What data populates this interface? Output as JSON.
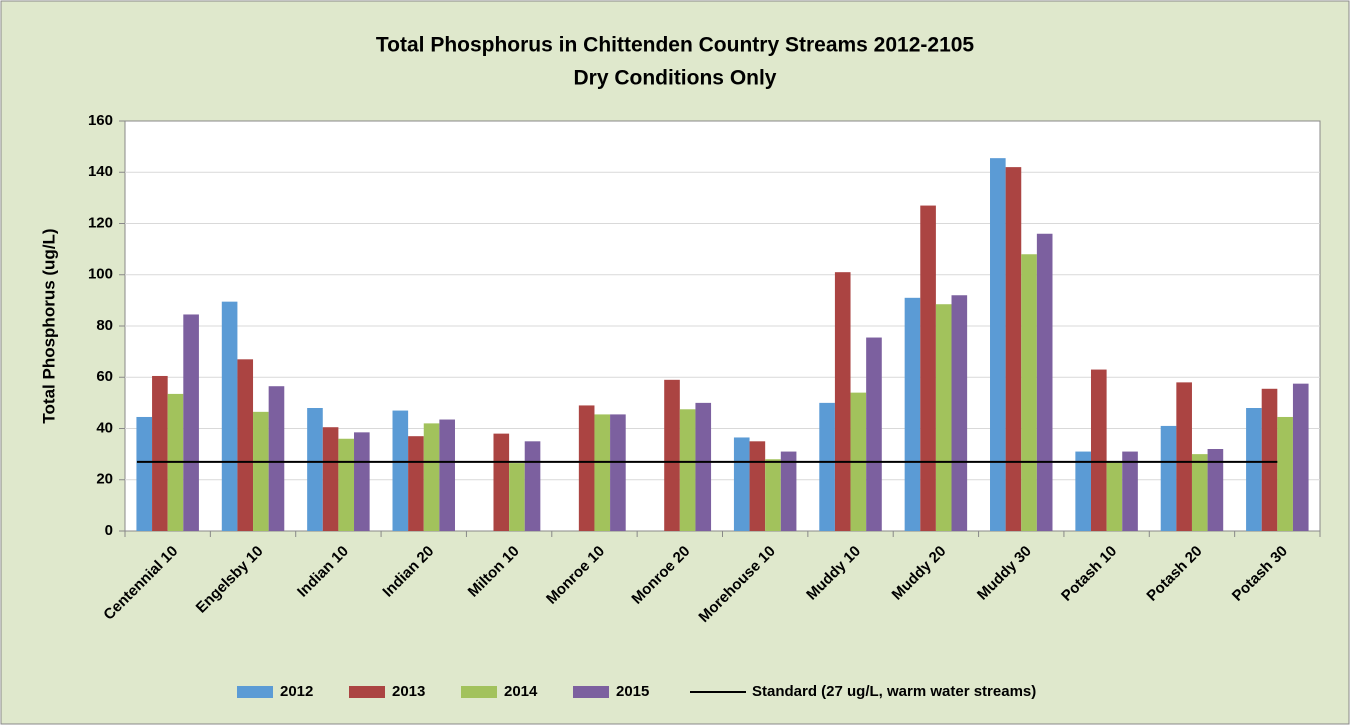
{
  "chart_data": {
    "type": "bar",
    "title": "Total Phosphorus in Chittenden Country Streams 2012-2105",
    "subtitle": "Dry Conditions Only",
    "y_label": "Total Phosphorus (ug/L)",
    "categories": [
      "Centennial 10",
      "Engelsby 10",
      "Indian 10",
      "Indian 20",
      "Milton 10",
      "Monroe 10",
      "Monroe 20",
      "Morehouse 10",
      "Muddy 10",
      "Muddy 20",
      "Muddy 30",
      "Potash 10",
      "Potash 20",
      "Potash 30"
    ],
    "series": [
      {
        "name": "2012",
        "color": "#5b9bd5",
        "values": [
          44.5,
          89.5,
          48,
          47,
          null,
          null,
          null,
          36.5,
          50,
          91,
          145.5,
          31,
          41,
          48
        ]
      },
      {
        "name": "2013",
        "color": "#ab4442",
        "values": [
          60.5,
          67,
          40.5,
          37,
          38,
          49,
          59,
          35,
          101,
          127,
          142,
          63,
          58,
          55.5
        ]
      },
      {
        "name": "2014",
        "color": "#a2c25c",
        "values": [
          53.5,
          46.5,
          36,
          42,
          26.5,
          45.5,
          47.5,
          28,
          54,
          88.5,
          108,
          27,
          30,
          44.5
        ]
      },
      {
        "name": "2015",
        "color": "#7c609f",
        "values": [
          84.5,
          56.5,
          38.5,
          43.5,
          35,
          45.5,
          50,
          31,
          75.5,
          92,
          116,
          31,
          32,
          57.5
        ]
      }
    ],
    "standard": {
      "name": "Standard (27 ug/L, warm water streams)",
      "value": 27,
      "color": "#000000"
    },
    "ylim": [
      0,
      160
    ],
    "yticks": [
      0,
      20,
      40,
      60,
      80,
      100,
      120,
      140,
      160
    ],
    "grid": true
  }
}
